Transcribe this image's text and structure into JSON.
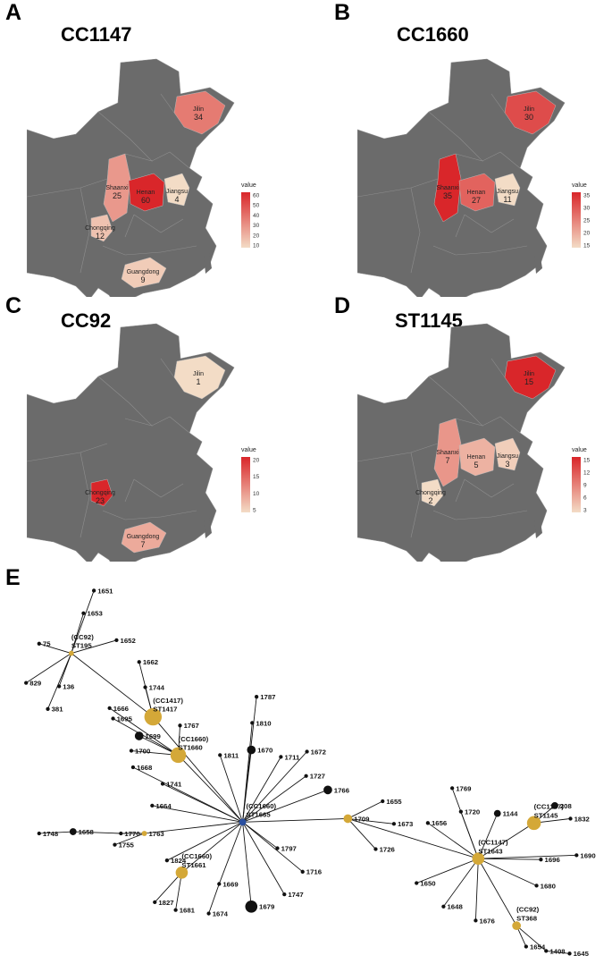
{
  "panels": [
    {
      "letter": "A",
      "title": "CC1147",
      "legend": {
        "title": "value",
        "ticks": [
          "60",
          "50",
          "40",
          "30",
          "20",
          "10"
        ],
        "max": 60,
        "min": 4
      },
      "provinces": [
        {
          "key": "jilin",
          "name": "Jilin",
          "value": 34
        },
        {
          "key": "shaanxi",
          "name": "Shaanxi",
          "value": 25
        },
        {
          "key": "henan",
          "name": "Henan",
          "value": 60
        },
        {
          "key": "jiangsu",
          "name": "Jiangsu",
          "value": 4
        },
        {
          "key": "chongqing",
          "name": "Chongqing",
          "value": 12
        },
        {
          "key": "guangdong",
          "name": "Guangdong",
          "value": 9
        }
      ]
    },
    {
      "letter": "B",
      "title": "CC1660",
      "legend": {
        "title": "value",
        "ticks": [
          "35",
          "30",
          "25",
          "20",
          "15"
        ],
        "max": 35,
        "min": 11
      },
      "provinces": [
        {
          "key": "jilin",
          "name": "Jilin",
          "value": 30
        },
        {
          "key": "shaanxi",
          "name": "Shaanxi",
          "value": 35
        },
        {
          "key": "henan",
          "name": "Henan",
          "value": 27
        },
        {
          "key": "jiangsu",
          "name": "Jiangsu",
          "value": 11
        }
      ]
    },
    {
      "letter": "C",
      "title": "CC92",
      "legend": {
        "title": "value",
        "ticks": [
          "20",
          "15",
          "10",
          "5"
        ],
        "max": 23,
        "min": 1
      },
      "provinces": [
        {
          "key": "jilin",
          "name": "Jilin",
          "value": 1
        },
        {
          "key": "chongqing",
          "name": "Chongqing",
          "value": 23
        },
        {
          "key": "guangdong",
          "name": "Guangdong",
          "value": 7
        }
      ]
    },
    {
      "letter": "D",
      "title": "ST1145",
      "legend": {
        "title": "value",
        "ticks": [
          "15",
          "12",
          "9",
          "6",
          "3"
        ],
        "max": 15,
        "min": 2
      },
      "provinces": [
        {
          "key": "jilin",
          "name": "Jilin",
          "value": 15
        },
        {
          "key": "shaanxi",
          "name": "Shaanxi",
          "value": 7
        },
        {
          "key": "henan",
          "name": "Henan",
          "value": 5
        },
        {
          "key": "jiangsu",
          "name": "Jiangsu",
          "value": 3
        },
        {
          "key": "chongqing",
          "name": "Chongqing",
          "value": 2
        }
      ]
    }
  ],
  "network": {
    "letter": "E",
    "colors": {
      "founder": "#d4a838",
      "leaf": "#111111",
      "center": "#2a4fa0",
      "map_gray": "#6b6b6b",
      "low": "#f3dcc6",
      "high": "#d9262a"
    },
    "nodes": [
      {
        "id": "ST195",
        "label": "(CC92)\nST195"
      },
      {
        "id": "1651",
        "label": "1651"
      },
      {
        "id": "1653",
        "label": "1653"
      },
      {
        "id": "75",
        "label": "75"
      },
      {
        "id": "1652",
        "label": "1652"
      },
      {
        "id": "829",
        "label": "829"
      },
      {
        "id": "136",
        "label": "136"
      },
      {
        "id": "381",
        "label": "381"
      },
      {
        "id": "ST1417",
        "label": "(CC1417)\nST1417"
      },
      {
        "id": "1662",
        "label": "1662"
      },
      {
        "id": "1744",
        "label": "1744"
      },
      {
        "id": "1666",
        "label": "1666"
      },
      {
        "id": "1695",
        "label": "1695"
      },
      {
        "id": "1699",
        "label": "1699"
      },
      {
        "id": "ST1660",
        "label": "(CC1660)\nST1660"
      },
      {
        "id": "1767",
        "label": "1767"
      },
      {
        "id": "1700",
        "label": "1700"
      },
      {
        "id": "ST1665",
        "label": "(CC1660)\nST1665"
      },
      {
        "id": "1787",
        "label": "1787"
      },
      {
        "id": "1810",
        "label": "1810"
      },
      {
        "id": "1670",
        "label": "1670"
      },
      {
        "id": "1811",
        "label": "1811"
      },
      {
        "id": "1711",
        "label": "1711"
      },
      {
        "id": "1672",
        "label": "1672"
      },
      {
        "id": "1727",
        "label": "1727"
      },
      {
        "id": "1766",
        "label": "1766"
      },
      {
        "id": "1668",
        "label": "1668"
      },
      {
        "id": "1741",
        "label": "1741"
      },
      {
        "id": "1664",
        "label": "1664"
      },
      {
        "id": "1763",
        "label": "1763"
      },
      {
        "id": "1770",
        "label": "1770"
      },
      {
        "id": "1658",
        "label": "1658"
      },
      {
        "id": "1748",
        "label": "1748"
      },
      {
        "id": "1755",
        "label": "1755"
      },
      {
        "id": "1824",
        "label": "1824"
      },
      {
        "id": "ST1661",
        "label": "(CC1660)\nST1661"
      },
      {
        "id": "1827",
        "label": "1827"
      },
      {
        "id": "1681",
        "label": "1681"
      },
      {
        "id": "1669",
        "label": "1669"
      },
      {
        "id": "1674",
        "label": "1674"
      },
      {
        "id": "1679",
        "label": "1679"
      },
      {
        "id": "1747",
        "label": "1747"
      },
      {
        "id": "1716",
        "label": "1716"
      },
      {
        "id": "1797",
        "label": "1797"
      },
      {
        "id": "1709",
        "label": "1709"
      },
      {
        "id": "1655",
        "label": "1655"
      },
      {
        "id": "1673",
        "label": "1673"
      },
      {
        "id": "1726",
        "label": "1726"
      },
      {
        "id": "ST1643",
        "label": "(CC1147)\nST1643"
      },
      {
        "id": "1769",
        "label": "1769"
      },
      {
        "id": "1720",
        "label": "1720"
      },
      {
        "id": "1144",
        "label": "1144"
      },
      {
        "id": "208",
        "label": "208"
      },
      {
        "id": "ST1145",
        "label": "(CC1147)\nST1145"
      },
      {
        "id": "1832",
        "label": "1832"
      },
      {
        "id": "1656",
        "label": "1656"
      },
      {
        "id": "1696",
        "label": "1696"
      },
      {
        "id": "1690",
        "label": "1690"
      },
      {
        "id": "1650",
        "label": "1650"
      },
      {
        "id": "1680",
        "label": "1680"
      },
      {
        "id": "1648",
        "label": "1648"
      },
      {
        "id": "1676",
        "label": "1676"
      },
      {
        "id": "ST368",
        "label": "(CC92)\nST368"
      },
      {
        "id": "1408",
        "label": "1408"
      },
      {
        "id": "1654",
        "label": "1654"
      },
      {
        "id": "1645",
        "label": "1645"
      }
    ],
    "edges": [
      [
        "ST195",
        "1651"
      ],
      [
        "ST195",
        "1653"
      ],
      [
        "ST195",
        "75"
      ],
      [
        "ST195",
        "1652"
      ],
      [
        "ST195",
        "829"
      ],
      [
        "ST195",
        "136"
      ],
      [
        "ST195",
        "381"
      ],
      [
        "ST195",
        "ST1417"
      ],
      [
        "ST1417",
        "1662"
      ],
      [
        "ST1417",
        "1744"
      ],
      [
        "ST1417",
        "ST1665"
      ],
      [
        "ST1660",
        "1666"
      ],
      [
        "ST1660",
        "1695"
      ],
      [
        "ST1660",
        "1699"
      ],
      [
        "ST1660",
        "1767"
      ],
      [
        "ST1660",
        "1700"
      ],
      [
        "ST1660",
        "ST1665"
      ],
      [
        "ST1665",
        "1787"
      ],
      [
        "ST1665",
        "1810"
      ],
      [
        "ST1665",
        "1670"
      ],
      [
        "ST1665",
        "1811"
      ],
      [
        "ST1665",
        "1711"
      ],
      [
        "ST1665",
        "1672"
      ],
      [
        "ST1665",
        "1727"
      ],
      [
        "ST1665",
        "1766"
      ],
      [
        "ST1665",
        "1668"
      ],
      [
        "ST1665",
        "1741"
      ],
      [
        "ST1665",
        "1664"
      ],
      [
        "ST1665",
        "1763"
      ],
      [
        "ST1665",
        "1824"
      ],
      [
        "ST1665",
        "ST1661"
      ],
      [
        "ST1665",
        "1669"
      ],
      [
        "ST1665",
        "1679"
      ],
      [
        "ST1665",
        "1747"
      ],
      [
        "ST1665",
        "1716"
      ],
      [
        "ST1665",
        "1797"
      ],
      [
        "ST1665",
        "1709"
      ],
      [
        "1763",
        "1770"
      ],
      [
        "1763",
        "1755"
      ],
      [
        "1770",
        "1658"
      ],
      [
        "1658",
        "1748"
      ],
      [
        "ST1661",
        "1827"
      ],
      [
        "ST1661",
        "1681"
      ],
      [
        "1669",
        "1674"
      ],
      [
        "1709",
        "1655"
      ],
      [
        "1709",
        "1673"
      ],
      [
        "1709",
        "1726"
      ],
      [
        "1709",
        "ST1643"
      ],
      [
        "ST1643",
        "1769"
      ],
      [
        "ST1643",
        "1720"
      ],
      [
        "ST1643",
        "1144"
      ],
      [
        "ST1643",
        "ST1145"
      ],
      [
        "ST1643",
        "1656"
      ],
      [
        "ST1643",
        "1696"
      ],
      [
        "ST1643",
        "1690"
      ],
      [
        "ST1643",
        "1650"
      ],
      [
        "ST1643",
        "1680"
      ],
      [
        "ST1643",
        "1648"
      ],
      [
        "ST1643",
        "1676"
      ],
      [
        "ST1643",
        "ST368"
      ],
      [
        "ST1145",
        "208"
      ],
      [
        "ST1145",
        "1832"
      ],
      [
        "ST368",
        "1408"
      ],
      [
        "ST368",
        "1654"
      ],
      [
        "1408",
        "1645"
      ]
    ]
  }
}
